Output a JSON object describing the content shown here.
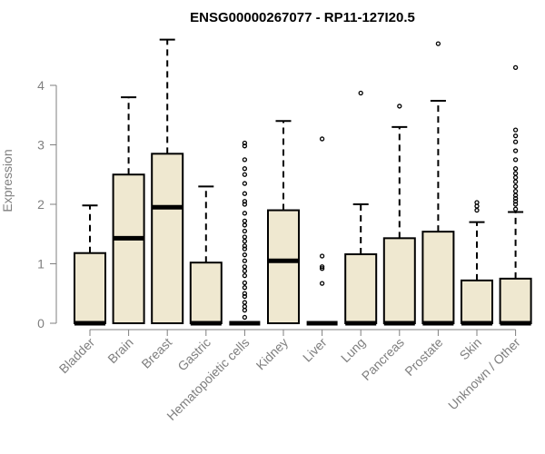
{
  "chart_data": {
    "type": "boxplot",
    "title": "ENSG00000267077 - RP11-127I20.5",
    "xlabel": "",
    "ylabel": "Expression",
    "ylim": [
      0,
      4.8
    ],
    "yticks": [
      0,
      1,
      2,
      3,
      4
    ],
    "box_fill": "#efe8d0",
    "stroke_color": "#000000",
    "axis_color": "#7f7f7f",
    "categories": [
      "Bladder",
      "Brain",
      "Breast",
      "Gastric",
      "Hematopoietic cells",
      "Kidney",
      "Liver",
      "Lung",
      "Pancreas",
      "Prostate",
      "Skin",
      "Unknown / Other"
    ],
    "boxes": [
      {
        "category": "Bladder",
        "whisker_low": 0,
        "q1": 0,
        "median": 0,
        "q3": 1.18,
        "whisker_high": 1.98,
        "outliers": []
      },
      {
        "category": "Brain",
        "whisker_low": 0,
        "q1": 0,
        "median": 1.43,
        "q3": 2.5,
        "whisker_high": 3.8,
        "outliers": []
      },
      {
        "category": "Breast",
        "whisker_low": 0,
        "q1": 0,
        "median": 1.95,
        "q3": 2.85,
        "whisker_high": 4.77,
        "outliers": []
      },
      {
        "category": "Gastric",
        "whisker_low": 0,
        "q1": 0,
        "median": 0,
        "q3": 1.02,
        "whisker_high": 2.3,
        "outliers": []
      },
      {
        "category": "Hematopoietic cells",
        "whisker_low": 0,
        "q1": 0,
        "median": 0,
        "q3": 0,
        "whisker_high": 0,
        "outliers": [
          0.1,
          0.22,
          0.28,
          0.35,
          0.45,
          0.5,
          0.6,
          0.68,
          0.8,
          0.88,
          0.95,
          1.05,
          1.15,
          1.25,
          1.3,
          1.38,
          1.45,
          1.55,
          1.65,
          1.72,
          1.85,
          2.0,
          2.05,
          2.18,
          2.35,
          2.5,
          2.6,
          2.75,
          2.98,
          3.03
        ]
      },
      {
        "category": "Kidney",
        "whisker_low": 0,
        "q1": 0,
        "median": 1.05,
        "q3": 1.9,
        "whisker_high": 3.4,
        "outliers": []
      },
      {
        "category": "Liver",
        "whisker_low": 0,
        "q1": 0,
        "median": 0,
        "q3": 0,
        "whisker_high": 0,
        "outliers": [
          0.67,
          0.92,
          0.95,
          1.13,
          3.1
        ]
      },
      {
        "category": "Lung",
        "whisker_low": 0,
        "q1": 0,
        "median": 0,
        "q3": 1.16,
        "whisker_high": 2.0,
        "outliers": [
          3.87
        ]
      },
      {
        "category": "Pancreas",
        "whisker_low": 0,
        "q1": 0,
        "median": 0,
        "q3": 1.43,
        "whisker_high": 3.3,
        "outliers": [
          3.65
        ]
      },
      {
        "category": "Prostate",
        "whisker_low": 0,
        "q1": 0,
        "median": 0,
        "q3": 1.54,
        "whisker_high": 3.74,
        "outliers": [
          4.7
        ]
      },
      {
        "category": "Skin",
        "whisker_low": 0,
        "q1": 0,
        "median": 0,
        "q3": 0.72,
        "whisker_high": 1.7,
        "outliers": [
          1.9,
          1.97,
          2.03
        ]
      },
      {
        "category": "Unknown / Other",
        "whisker_low": 0,
        "q1": 0,
        "median": 0,
        "q3": 0.75,
        "whisker_high": 1.87,
        "outliers": [
          1.92,
          2.0,
          2.05,
          2.1,
          2.15,
          2.22,
          2.3,
          2.38,
          2.45,
          2.52,
          2.6,
          2.75,
          2.9,
          3.05,
          3.15,
          3.25,
          4.3
        ]
      }
    ]
  }
}
